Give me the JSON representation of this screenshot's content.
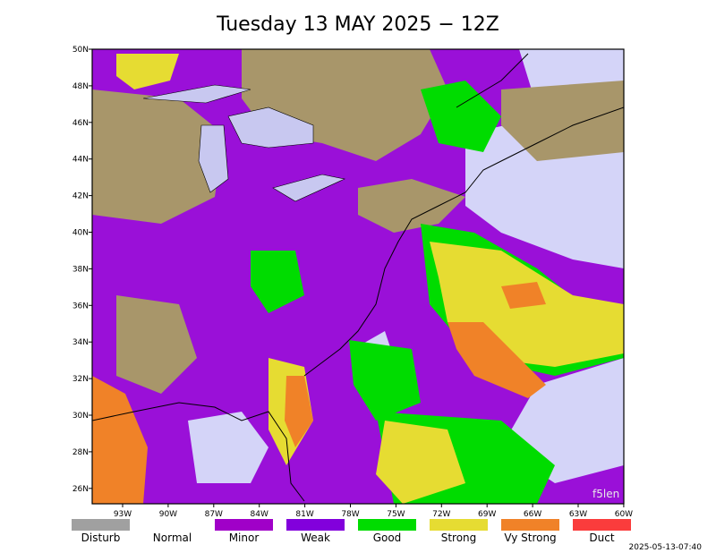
{
  "map": {
    "title": "Tuesday 13 MAY 2025 − 12Z",
    "lat_labels": [
      "50N",
      "48N",
      "46N",
      "44N",
      "42N",
      "40N",
      "38N",
      "36N",
      "34N",
      "32N",
      "30N",
      "28N",
      "26N"
    ],
    "lon_labels": [
      "93W",
      "90W",
      "87W",
      "84W",
      "81W",
      "78W",
      "75W",
      "72W",
      "69W",
      "66W",
      "63W",
      "60W"
    ],
    "legend": [
      {
        "label": "Disturb",
        "color": "#a0a0a0"
      },
      {
        "label": "Normal",
        "color": "#ffffff"
      },
      {
        "label": "Minor",
        "color": "#a000c8"
      },
      {
        "label": "Weak",
        "color": "#8200dc"
      },
      {
        "label": "Good",
        "color": "#00dc00"
      },
      {
        "label": "Strong",
        "color": "#e6dc32"
      },
      {
        "label": "Vy Strong",
        "color": "#f08228"
      },
      {
        "label": "Duct",
        "color": "#fa3c3c"
      }
    ],
    "timestamp": "2025-05-13-07:40",
    "watermark": "f5len"
  }
}
